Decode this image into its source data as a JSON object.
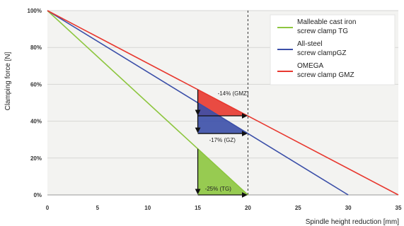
{
  "chart_data": {
    "type": "line",
    "xlabel": "Spindle height reduction [mm]",
    "ylabel": "Clamping force [N]",
    "xlim": [
      0,
      35
    ],
    "ylim": [
      0,
      100
    ],
    "x_ticks": [
      "0",
      "5",
      "10",
      "15",
      "20",
      "25",
      "30",
      "35"
    ],
    "y_ticks": [
      "0%",
      "20%",
      "40%",
      "60%",
      "80%",
      "100%"
    ],
    "grid": "horizontal",
    "legend_position": "top-right",
    "reference_line_x": 20,
    "series": [
      {
        "name": "Malleable cast iron screw clamp TG",
        "color": "#8dc63f",
        "x": [
          0,
          20
        ],
        "y": [
          100,
          0
        ]
      },
      {
        "name": "All-steel screw clampGZ",
        "color": "#3b4fa8",
        "x": [
          0,
          30
        ],
        "y": [
          100,
          0
        ]
      },
      {
        "name": "OMEGA screw clamp GMZ",
        "color": "#e8382f",
        "x": [
          0,
          35
        ],
        "y": [
          100,
          0
        ]
      }
    ],
    "legend": [
      {
        "line1": "Malleable cast iron",
        "line2": "screw clamp TG",
        "color": "#8dc63f"
      },
      {
        "line1": "All-steel",
        "line2": "screw clampGZ",
        "color": "#3b4fa8"
      },
      {
        "line1": "OMEGA",
        "line2": "screw clamp GMZ",
        "color": "#e8382f"
      }
    ],
    "annotations": [
      {
        "text": "-14% (GMZ)",
        "x1": 15,
        "x2": 20,
        "y_top": 57.1,
        "y_bottom": 42.9,
        "color": "#e8382f"
      },
      {
        "text": "-17% (GZ)",
        "x1": 15,
        "x2": 20,
        "y_top": 50,
        "y_bottom": 33.3,
        "color": "#3b4fa8"
      },
      {
        "text": "-25% (TG)",
        "x1": 15,
        "x2": 20,
        "y_top": 25,
        "y_bottom": 0,
        "color": "#8dc63f"
      }
    ]
  }
}
